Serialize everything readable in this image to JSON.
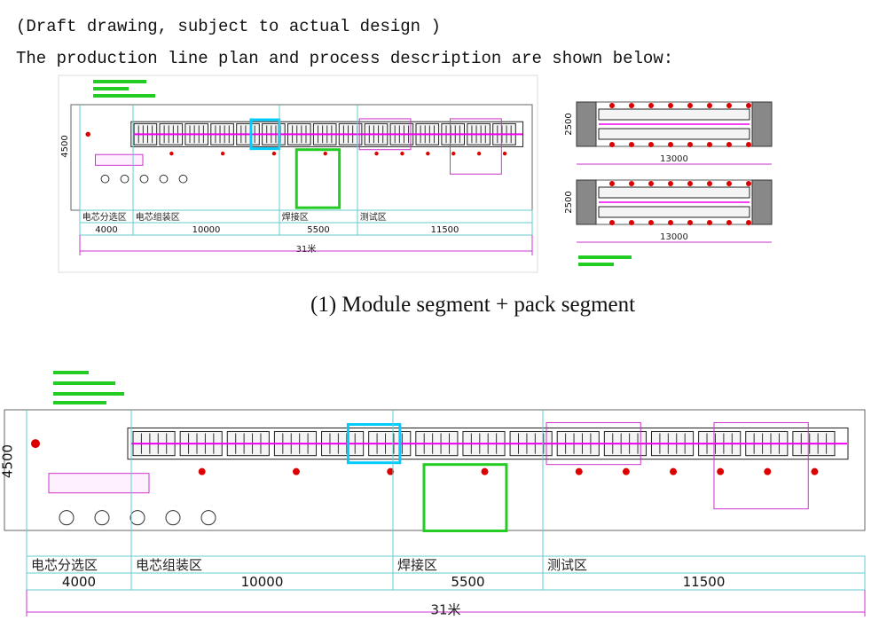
{
  "header": {
    "note": "(Draft drawing, subject to actual design )",
    "intro": "The production line plan and process description are shown below:"
  },
  "figure1": {
    "height_label": "4500",
    "zones": [
      {
        "label": "电芯分选区",
        "length": "4000"
      },
      {
        "label": "电芯组装区",
        "length": "10000"
      },
      {
        "label": "焊接区",
        "length": "5500"
      },
      {
        "label": "测试区",
        "length": "11500"
      }
    ],
    "total": "31米",
    "pack": [
      {
        "height_label": "2500",
        "length": "13000"
      },
      {
        "height_label": "2500",
        "length": "13000"
      }
    ]
  },
  "caption": "(1) Module segment + pack segment",
  "figure2": {
    "height_label": "4500",
    "zones": [
      {
        "label": "电芯分选区",
        "length": "4000"
      },
      {
        "label": "电芯组装区",
        "length": "10000"
      },
      {
        "label": "焊接区",
        "length": "5500"
      },
      {
        "label": "测试区",
        "length": "11500"
      }
    ],
    "total": "31米"
  }
}
